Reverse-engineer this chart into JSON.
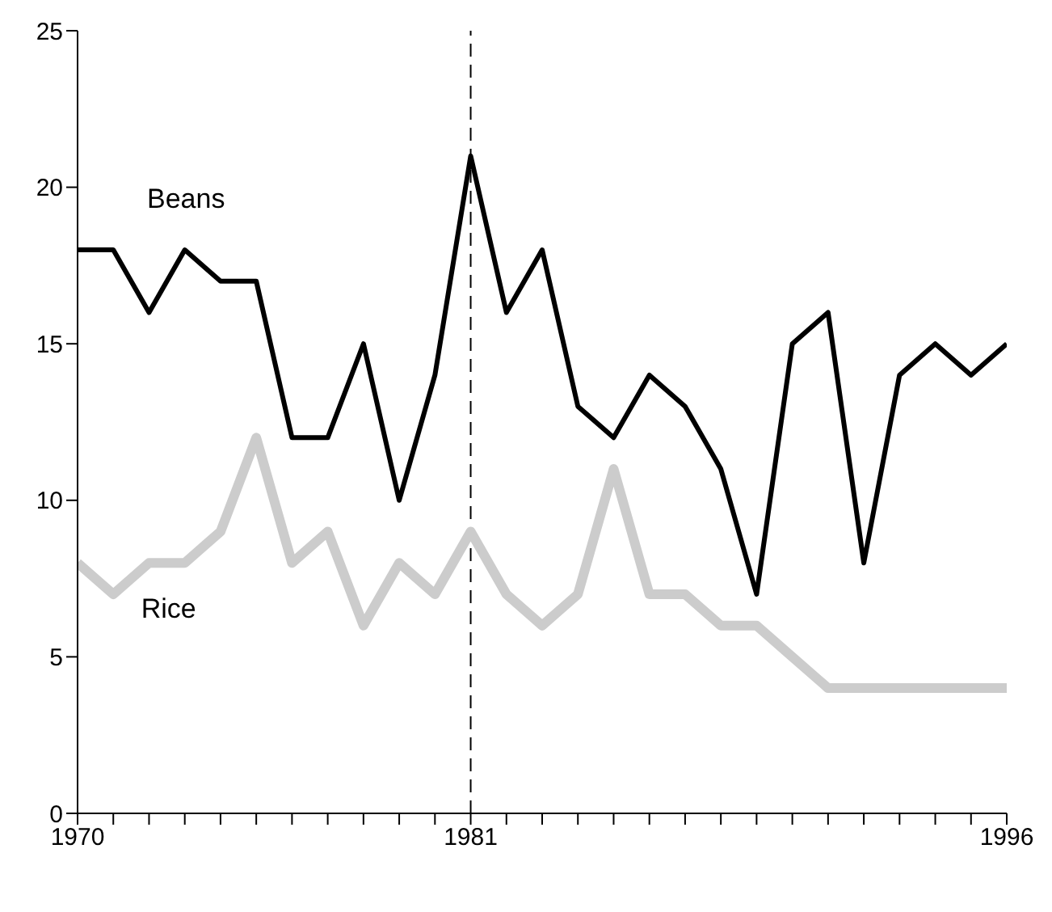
{
  "chart_data": {
    "type": "line",
    "x": [
      1970,
      1971,
      1972,
      1973,
      1974,
      1975,
      1976,
      1977,
      1978,
      1979,
      1980,
      1981,
      1982,
      1983,
      1984,
      1985,
      1986,
      1987,
      1988,
      1989,
      1990,
      1991,
      1992,
      1993,
      1994,
      1995,
      1996
    ],
    "series": [
      {
        "name": "Beans",
        "color": "#000000",
        "values": [
          18,
          18,
          16,
          18,
          17,
          17,
          12,
          12,
          15,
          10,
          14,
          21,
          16,
          18,
          13,
          12,
          14,
          13,
          11,
          7,
          15,
          16,
          8,
          14,
          15,
          14,
          15
        ]
      },
      {
        "name": "Rice",
        "color": "#cccccc",
        "values": [
          8,
          7,
          8,
          8,
          9,
          12,
          8,
          9,
          6,
          8,
          7,
          9,
          7,
          6,
          7,
          11,
          7,
          7,
          6,
          6,
          5,
          4,
          4,
          4,
          4,
          4,
          4
        ]
      }
    ],
    "xlim": [
      1970,
      1996
    ],
    "xticks": [
      1970,
      {
        "value": 1971,
        "label": null
      },
      {
        "value": 1972,
        "label": null
      },
      {
        "value": 1973,
        "label": null
      },
      {
        "value": 1974,
        "label": null
      },
      {
        "value": 1975,
        "label": null
      },
      {
        "value": 1976,
        "label": null
      },
      {
        "value": 1977,
        "label": null
      },
      {
        "value": 1978,
        "label": null
      },
      {
        "value": 1979,
        "label": null
      },
      {
        "value": 1980,
        "label": null
      },
      1981,
      {
        "value": 1982,
        "label": null
      },
      {
        "value": 1983,
        "label": null
      },
      {
        "value": 1984,
        "label": null
      },
      {
        "value": 1985,
        "label": null
      },
      {
        "value": 1986,
        "label": null
      },
      {
        "value": 1987,
        "label": null
      },
      {
        "value": 1988,
        "label": null
      },
      {
        "value": 1989,
        "label": null
      },
      {
        "value": 1990,
        "label": null
      },
      {
        "value": 1991,
        "label": null
      },
      {
        "value": 1992,
        "label": null
      },
      {
        "value": 1993,
        "label": null
      },
      {
        "value": 1994,
        "label": null
      },
      {
        "value": 1995,
        "label": null
      },
      1996
    ],
    "ylim": [
      0,
      25
    ],
    "yticks": [
      0,
      5,
      10,
      15,
      20,
      25
    ],
    "ref_lines": [
      {
        "axis": "x",
        "value": 1981,
        "color": "#000000",
        "line_style": "dashed"
      }
    ],
    "grid": false,
    "legend": false,
    "marker": "none",
    "line_style": "solid"
  }
}
